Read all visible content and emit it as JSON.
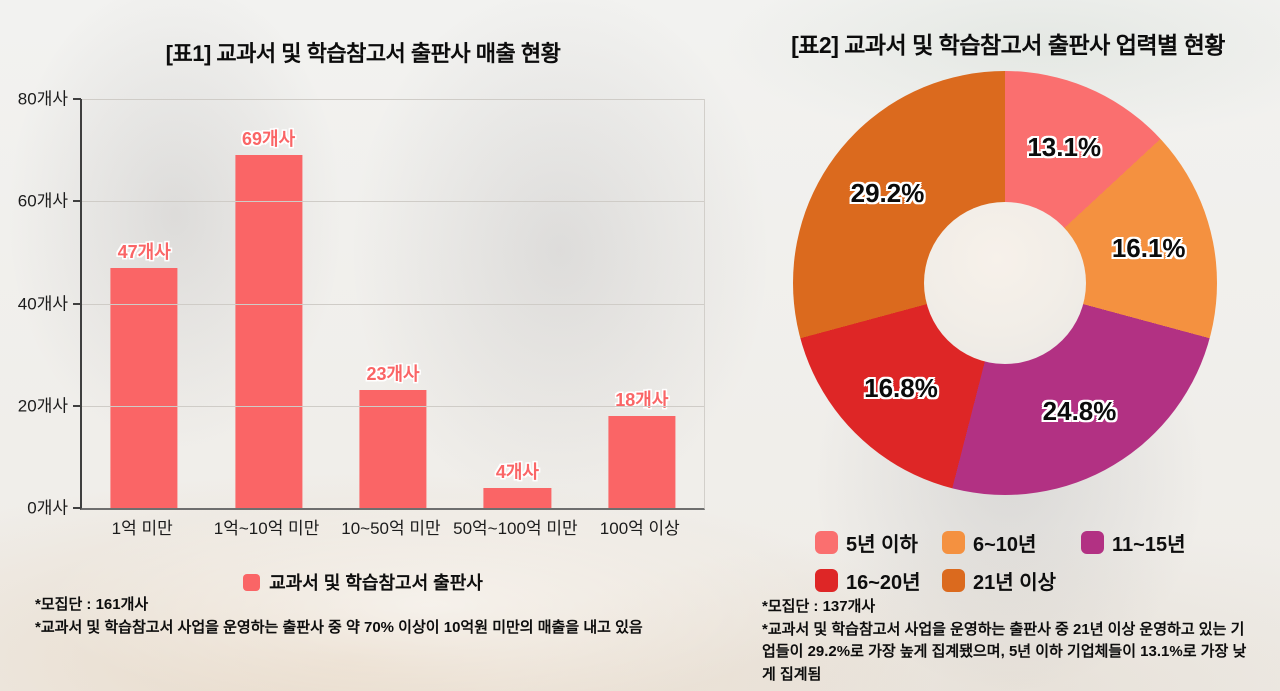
{
  "page": {
    "background": "#f2f1ee"
  },
  "left_chart": {
    "title": "[표1] 교과서 및 학습참고서 출판사 매출 현황",
    "legend_label": "교과서 및 학습참고서 출판사",
    "footnote1": "*모집단 : 161개사",
    "footnote2": "*교과서 및 학습참고서 사업을 운영하는 출판사 중 약 70% 이상이 10억원 미만의 매출을 내고 있음"
  },
  "right_chart": {
    "title": "[표2] 교과서 및 학습참고서 출판사 업력별 현황",
    "footnote1": "*모집단 : 137개사",
    "footnote2": "*교과서 및 학습참고서 사업을 운영하는 출판사 중 21년 이상 운영하고 있는 기업들이 29.2%로 가장 높게 집계됐으며, 5년 이하 기업체들이 13.1%로 가장 낮게 집계됨"
  },
  "chart_data": [
    {
      "type": "bar",
      "title": "[표1] 교과서 및 학습참고서 출판사 매출 현황",
      "categories": [
        "1억 미만",
        "1억~10억 미만",
        "10~50억 미만",
        "50억~100억 미만",
        "100억 이상"
      ],
      "values": [
        47,
        69,
        23,
        4,
        18
      ],
      "value_labels": [
        "47개사",
        "69개사",
        "23개사",
        "4개사",
        "18개사"
      ],
      "yticks": [
        0,
        20,
        40,
        60,
        80
      ],
      "ytick_labels": [
        "0개사",
        "20개사",
        "40개사",
        "60개사",
        "80개사"
      ],
      "ylim": [
        0,
        80
      ],
      "grid": "horizontal",
      "bar_color": "#FA6566",
      "legend": [
        "교과서 및 학습참고서 출판사"
      ],
      "legend_position": "bottom"
    },
    {
      "type": "pie",
      "subtype": "donut",
      "title": "[표2] 교과서 및 학습참고서 출판사 업력별 현황",
      "labels": [
        "5년 이하",
        "6~10년",
        "11~15년",
        "16~20년",
        "21년 이상"
      ],
      "values": [
        13.1,
        16.1,
        24.8,
        16.8,
        29.2
      ],
      "percent_labels": [
        "13.1%",
        "16.1%",
        "24.8%",
        "16.8%",
        "29.2%"
      ],
      "colors": [
        "#FA6F6F",
        "#F49140",
        "#B23183",
        "#DE2626",
        "#DB6A1E"
      ],
      "start_angle_deg": 0,
      "direction": "clockwise",
      "inner_radius_ratio": 0.38,
      "legend_position": "bottom"
    }
  ]
}
